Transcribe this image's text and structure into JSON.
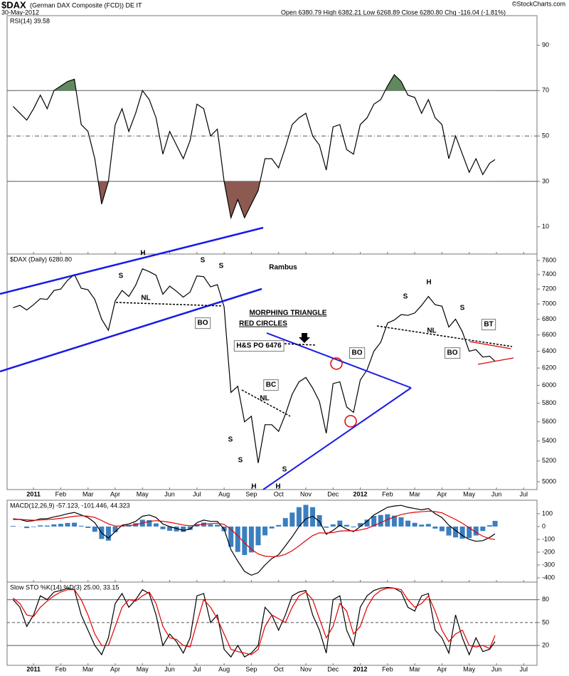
{
  "chart_data": {
    "type": "stock",
    "title": "$DAX",
    "subtitle": "(German DAX Composite (FCD)) DE IT",
    "date": "30-May-2012",
    "ohlc": "Open 6380.79 High 6382.21 Low 6268.89 Close 6280.80 Chg -116.04 (-1.81%)",
    "credit": "©StockCharts.com",
    "xlim": [
      -0.84,
      18.49
    ],
    "xticks": [
      {
        "value": 0,
        "label": "2011"
      },
      {
        "value": 1,
        "label": "Feb"
      },
      {
        "value": 2,
        "label": "Mar"
      },
      {
        "value": 3,
        "label": "Apr"
      },
      {
        "value": 4,
        "label": "May"
      },
      {
        "value": 5,
        "label": "Jun"
      },
      {
        "value": 6,
        "label": "Jul"
      },
      {
        "value": 7,
        "label": "Aug"
      },
      {
        "value": 8,
        "label": "Sep"
      },
      {
        "value": 9,
        "label": "Oct"
      },
      {
        "value": 10,
        "label": "Nov"
      },
      {
        "value": 11,
        "label": "Dec"
      },
      {
        "value": 12,
        "label": "2012"
      },
      {
        "value": 13,
        "label": "Feb"
      },
      {
        "value": 14,
        "label": "Mar"
      },
      {
        "value": 15,
        "label": "Apr"
      },
      {
        "value": 16,
        "label": "May"
      },
      {
        "value": 17,
        "label": "Jun"
      },
      {
        "value": 18,
        "label": "Jul"
      }
    ],
    "x": [
      -0.75,
      -0.5,
      -0.25,
      0,
      0.25,
      0.5,
      0.75,
      1,
      1.25,
      1.5,
      1.75,
      2,
      2.25,
      2.5,
      2.75,
      3,
      3.25,
      3.5,
      3.75,
      4,
      4.25,
      4.5,
      4.75,
      5,
      5.25,
      5.5,
      5.75,
      6,
      6.25,
      6.5,
      6.75,
      7,
      7.25,
      7.5,
      7.75,
      8,
      8.25,
      8.5,
      8.75,
      9,
      9.25,
      9.5,
      9.75,
      10,
      10.25,
      10.5,
      10.75,
      11,
      11.25,
      11.5,
      11.75,
      12,
      12.25,
      12.5,
      12.75,
      13,
      13.25,
      13.5,
      13.75,
      14,
      14.25,
      14.5,
      14.75,
      15,
      15.25,
      15.5,
      15.75,
      16,
      16.25,
      16.5,
      16.75,
      16.95
    ],
    "panels": [
      {
        "label": "RSI(14) 39.58",
        "ylim": [
          -2,
          103
        ],
        "yticks": [
          10,
          30,
          50,
          70,
          90
        ],
        "ref_lines": [
          {
            "value": 70,
            "style": "solid"
          },
          {
            "value": 50,
            "style": "dashdot"
          },
          {
            "value": 30,
            "style": "solid"
          }
        ],
        "bands": {
          "upper": 70,
          "lower": 30,
          "upper_color": "#5f8a5f",
          "lower_color": "#8c5a50"
        },
        "series": [
          {
            "type": "line",
            "color": "#000000",
            "values": [
              63,
              60,
              57,
              62,
              68,
              62,
              70,
              72,
              74,
              75,
              55,
              52,
              40,
              20,
              30,
              55,
              62,
              52,
              60,
              70,
              66,
              58,
              42,
              52,
              46,
              40,
              48,
              64,
              62,
              50,
              53,
              30,
              14,
              22,
              14,
              20,
              26,
              40,
              40,
              36,
              45,
              55,
              58,
              60,
              50,
              46,
              35,
              54,
              55,
              44,
              42,
              55,
              58,
              64,
              66,
              72,
              77,
              74,
              68,
              67,
              60,
              66,
              58,
              55,
              40,
              50,
              42,
              34,
              40,
              33,
              38,
              39.58
            ]
          }
        ]
      },
      {
        "label": "$DAX (Daily) 6280.80",
        "log_scale": true,
        "ylim": [
          4926,
          7693
        ],
        "yticks": [
          5000,
          5200,
          5400,
          5600,
          5800,
          6000,
          6200,
          6400,
          6600,
          6800,
          7000,
          7200,
          7400,
          7600
        ],
        "series": [
          {
            "type": "line",
            "color": "#000000",
            "values": [
              6950,
              6980,
              6920,
              6990,
              7070,
              7060,
              7180,
              7200,
              7320,
              7400,
              7210,
              7190,
              7060,
              6800,
              6660,
              7040,
              7180,
              7100,
              7250,
              7480,
              7440,
              7390,
              7130,
              7240,
              7170,
              7090,
              7160,
              7380,
              7370,
              7230,
              7260,
              6960,
              5920,
              5990,
              5600,
              5660,
              5180,
              5570,
              5570,
              5500,
              5680,
              5900,
              6040,
              6090,
              5970,
              5820,
              5480,
              6020,
              6040,
              5760,
              5700,
              6060,
              6180,
              6400,
              6510,
              6750,
              6790,
              6860,
              6850,
              6880,
              6980,
              7100,
              6990,
              6970,
              6700,
              6800,
              6640,
              6400,
              6420,
              6330,
              6340,
              6280.8
            ]
          }
        ]
      },
      {
        "label": "MACD(12,26,9) -57.123, -101.446, 44.323",
        "ylim": [
          -433,
          205
        ],
        "yticks": [
          -400,
          -300,
          -200,
          -100,
          0,
          100
        ],
        "series": [
          {
            "type": "histogram",
            "color": "#3a7fc0",
            "values": [
              5,
              -1,
              -12,
              -4,
              9,
              8,
              17,
              21,
              28,
              30,
              6,
              -11,
              -41,
              -97,
              -110,
              -44,
              6,
              13,
              26,
              53,
              50,
              24,
              -21,
              -33,
              -38,
              -42,
              -26,
              19,
              31,
              17,
              14,
              -37,
              -158,
              -198,
              -222,
              -202,
              -146,
              -69,
              -15,
              12,
              66,
              109,
              151,
              169,
              151,
              89,
              -9,
              17,
              46,
              13,
              -6,
              27,
              54,
              83,
              90,
              96,
              85,
              72,
              46,
              29,
              15,
              20,
              -16,
              -37,
              -70,
              -85,
              -95,
              -90,
              -70,
              -35,
              10,
              44.323
            ]
          },
          {
            "type": "line",
            "color": "#000000",
            "values": [
              60,
              55,
              40,
              45,
              60,
              62,
              75,
              85,
              100,
              110,
              90,
              70,
              30,
              -50,
              -90,
              -40,
              10,
              20,
              40,
              80,
              90,
              70,
              20,
              0,
              -15,
              -30,
              -20,
              30,
              50,
              40,
              40,
              -20,
              -180,
              -270,
              -350,
              -380,
              -360,
              -300,
              -250,
              -220,
              -150,
              -80,
              0,
              60,
              80,
              40,
              -60,
              -30,
              10,
              -20,
              -40,
              0,
              40,
              90,
              120,
              150,
              160,
              165,
              150,
              140,
              130,
              140,
              100,
              70,
              10,
              -30,
              -70,
              -100,
              -115,
              -110,
              -85,
              -57.123
            ]
          },
          {
            "type": "line",
            "color": "#e00000",
            "values": [
              55,
              56,
              52,
              49,
              51,
              54,
              58,
              64,
              72,
              80,
              84,
              81,
              71,
              47,
              20,
              4,
              4,
              7,
              14,
              27,
              40,
              46,
              41,
              33,
              23,
              12,
              6,
              11,
              19,
              23,
              26,
              17,
              -22,
              -72,
              -128,
              -178,
              -214,
              -231,
              -235,
              -232,
              -216,
              -189,
              -151,
              -109,
              -71,
              -49,
              -51,
              -47,
              -36,
              -33,
              -34,
              -27,
              -14,
              7,
              30,
              54,
              75,
              93,
              104,
              111,
              115,
              120,
              116,
              107,
              80,
              55,
              25,
              -10,
              -45,
              -75,
              -95,
              -101.446
            ]
          }
        ]
      },
      {
        "label": "Slow STO %K(14) %D(3) 25.00, 33.15",
        "ylim": [
          -6,
          103
        ],
        "yticks": [
          20,
          50,
          80
        ],
        "ref_lines": [
          {
            "value": 80,
            "style": "solid"
          },
          {
            "value": 50,
            "style": "dashed"
          },
          {
            "value": 20,
            "style": "solid"
          }
        ],
        "series": [
          {
            "type": "line",
            "color": "#000000",
            "values": [
              80,
              70,
              45,
              60,
              85,
              80,
              90,
              92,
              95,
              93,
              60,
              40,
              20,
              8,
              30,
              75,
              88,
              70,
              80,
              93,
              88,
              60,
              20,
              35,
              25,
              10,
              30,
              85,
              88,
              50,
              60,
              15,
              5,
              20,
              5,
              10,
              20,
              70,
              60,
              40,
              60,
              85,
              90,
              92,
              60,
              40,
              10,
              80,
              85,
              40,
              20,
              70,
              85,
              92,
              95,
              96,
              95,
              90,
              70,
              65,
              85,
              88,
              40,
              30,
              10,
              60,
              30,
              8,
              30,
              12,
              15,
              25
            ]
          },
          {
            "type": "line",
            "color": "#e00000",
            "values": [
              82,
              75,
              60,
              58,
              70,
              78,
              85,
              90,
              93,
              93,
              80,
              60,
              35,
              20,
              20,
              45,
              70,
              80,
              78,
              85,
              90,
              75,
              45,
              30,
              28,
              20,
              18,
              50,
              80,
              70,
              55,
              35,
              15,
              12,
              10,
              8,
              15,
              45,
              60,
              55,
              50,
              70,
              85,
              90,
              80,
              55,
              30,
              45,
              75,
              65,
              35,
              45,
              70,
              85,
              92,
              95,
              95,
              93,
              80,
              70,
              75,
              85,
              65,
              40,
              25,
              35,
              40,
              20,
              18,
              20,
              16,
              33.15
            ]
          }
        ]
      }
    ],
    "annotations": [
      "Rambus",
      "H",
      "S",
      "S",
      "S",
      "NL",
      "BO",
      "MORPHING TRIANGLE",
      "RED CIRCLES",
      "H&S PO 6476",
      "BC",
      "NL",
      "S",
      "S",
      "H",
      "H",
      "S",
      "BO",
      "S",
      "H",
      "S",
      "NL",
      "BO",
      "BT"
    ]
  }
}
